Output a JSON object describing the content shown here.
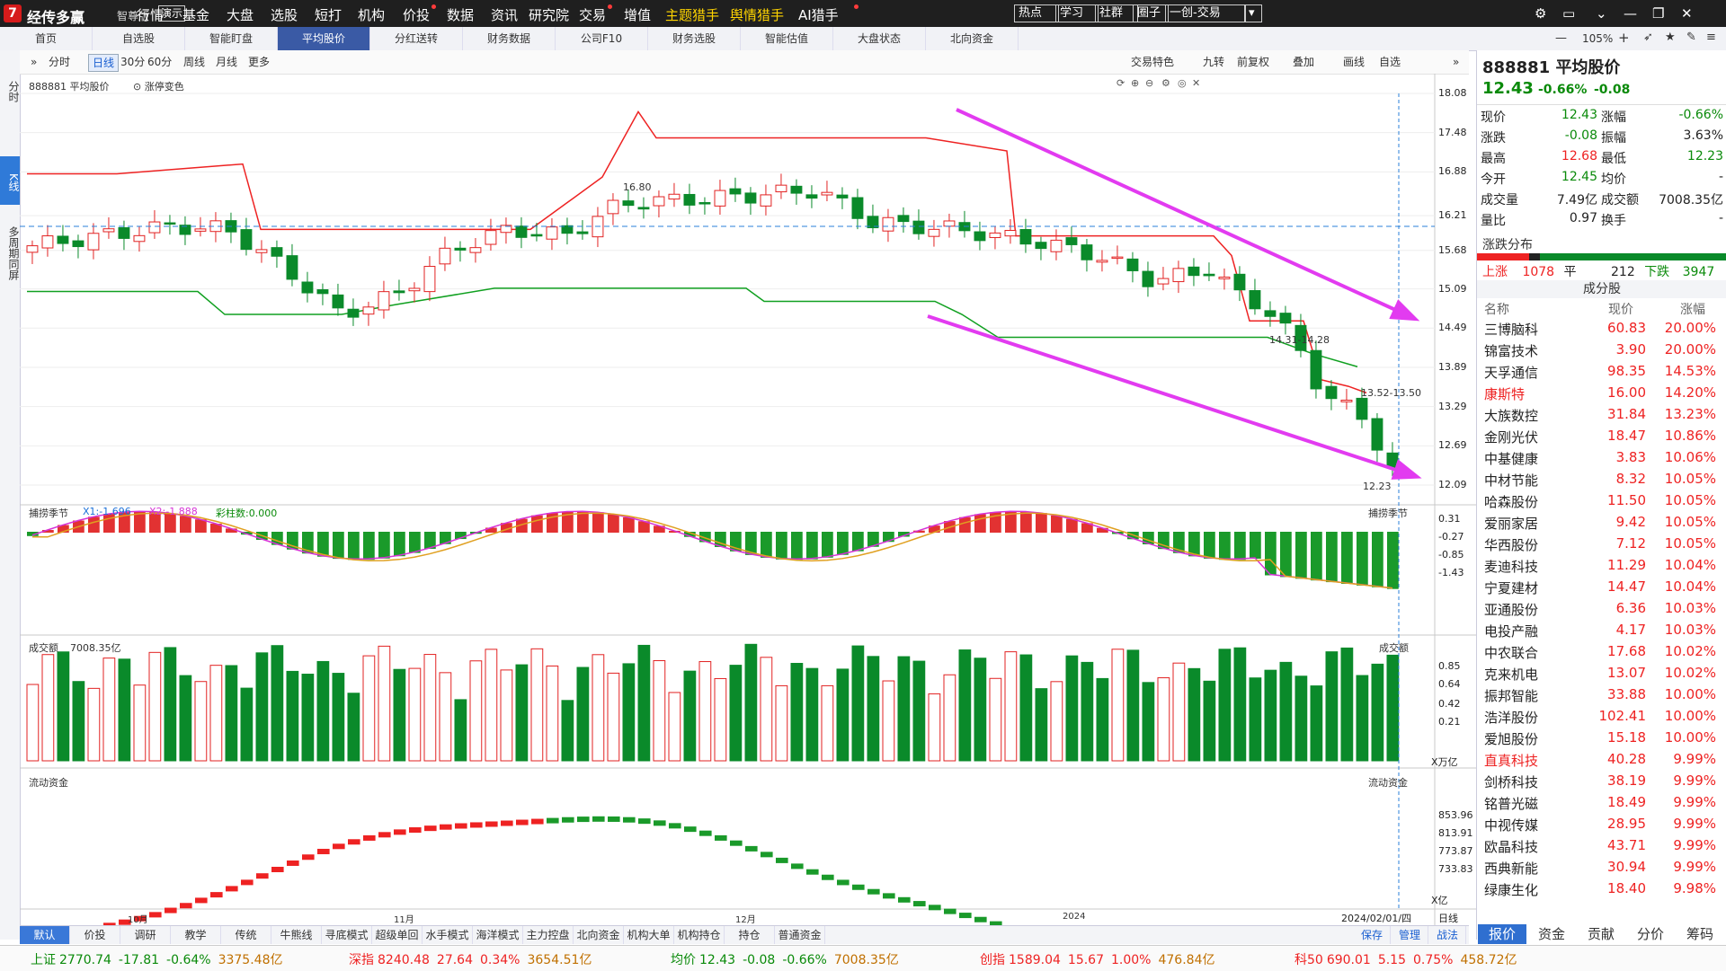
{
  "app": {
    "logo": "7",
    "name": "经传多赢",
    "edition": "智尊版",
    "demo": "演示"
  },
  "menu": [
    {
      "label": "行情",
      "hl": false,
      "dot": false
    },
    {
      "label": "基金",
      "hl": false,
      "dot": false
    },
    {
      "label": "大盘",
      "hl": false,
      "dot": false
    },
    {
      "label": "选股",
      "hl": false,
      "dot": false
    },
    {
      "label": "短打",
      "hl": false,
      "dot": false
    },
    {
      "label": "机构",
      "hl": false,
      "dot": false
    },
    {
      "label": "价投",
      "hl": false,
      "dot": true
    },
    {
      "label": "数据",
      "hl": false,
      "dot": false
    },
    {
      "label": "资讯",
      "hl": false,
      "dot": false
    },
    {
      "label": "研究院",
      "hl": false,
      "dot": false
    },
    {
      "label": "交易",
      "hl": false,
      "dot": true
    },
    {
      "label": "增值",
      "hl": false,
      "dot": false
    },
    {
      "label": "主题猎手",
      "hl": true,
      "dot": false
    },
    {
      "label": "舆情猎手",
      "hl": true,
      "dot": false
    },
    {
      "label": "AI猎手",
      "hl": false,
      "dot": true
    }
  ],
  "topbuttons": [
    "热点",
    "学习",
    "社群",
    "圈子",
    "一创-交易"
  ],
  "tabs": [
    "首页",
    "自选股",
    "智能盯盘",
    "平均股价",
    "分红送转",
    "财务数据",
    "公司F10",
    "财务选股",
    "智能估值",
    "大盘状态",
    "北向资金"
  ],
  "zoom": "105%",
  "vtabs": [
    {
      "label": "分时",
      "active": false
    },
    {
      "label": "K线",
      "active": true
    },
    {
      "label": "多周期同屏",
      "active": false
    }
  ],
  "toolbar": {
    "periods": [
      "分时",
      "日线",
      "30分",
      "60分",
      "周线",
      "月线",
      "更多"
    ],
    "active_period": "日线",
    "right": [
      "交易特色",
      "九转",
      "前复权",
      "叠加",
      "画线",
      "自选"
    ]
  },
  "kline": {
    "title": "888881 平均股价",
    "toggle": "涨停变色",
    "yaxis": [
      "18.08",
      "17.48",
      "16.88",
      "16.21",
      "15.68",
      "15.09",
      "14.49",
      "13.89",
      "13.29",
      "12.69",
      "12.09"
    ],
    "annot_high": "16.80",
    "annot_band1": "14.31-14.28",
    "annot_band2": "13.52-13.50",
    "annot_low": "12.23"
  },
  "macd": {
    "title": "捕捞季节",
    "x1": "X1:-1.696",
    "x2": "X2:-1.888",
    "bars": "彩柱数:0.000",
    "right_title": "捕捞季节",
    "yaxis": [
      "0.31",
      "-0.27",
      "-0.85",
      "-1.43"
    ]
  },
  "volume": {
    "title": "成交额",
    "value": "7008.35亿",
    "right_title": "成交额",
    "yaxis": [
      "0.85",
      "0.64",
      "0.42",
      "0.21"
    ],
    "unit": "X万亿"
  },
  "flow": {
    "title": "流动资金",
    "right_title": "流动资金",
    "yaxis": [
      "853.96",
      "813.91",
      "773.87",
      "733.83"
    ],
    "unit": "X亿"
  },
  "xaxis": [
    "10月",
    "11月",
    "12月",
    "2024"
  ],
  "cursor_date": "2024/02/01/四",
  "period_label": "日线",
  "btabs": [
    "默认",
    "价投",
    "调研",
    "教学",
    "传统",
    "牛熊线",
    "寻底模式",
    "超级单回档",
    "水手模式",
    "海洋模式",
    "主力控盘",
    "北向资金",
    "机构大单",
    "机构持仓",
    "持仓",
    "普通资金"
  ],
  "btabs_right": [
    "保存",
    "管理",
    "战法"
  ],
  "quote": {
    "code": "888881",
    "name": "平均股价",
    "price": "12.43",
    "pct": "-0.66%",
    "chg": "-0.08",
    "rows": [
      [
        "现价",
        "12.43",
        "涨幅",
        "-0.66%"
      ],
      [
        "涨跌",
        "-0.08",
        "振幅",
        "3.63%"
      ],
      [
        "最高",
        "12.68",
        "最低",
        "12.23"
      ],
      [
        "今开",
        "12.45",
        "均价",
        "-"
      ],
      [
        "成交量",
        "7.49亿",
        "成交额",
        "7008.35亿"
      ],
      [
        "量比",
        "0.97",
        "换手",
        "-"
      ]
    ],
    "dist_title": "涨跌分布",
    "up_label": "上涨",
    "up": "1078",
    "flat_label": "平",
    "flat": "212",
    "down_label": "下跌",
    "down": "3947",
    "components_title": "成分股",
    "hdr": [
      "名称",
      "现价",
      "涨幅"
    ]
  },
  "stocks": [
    [
      "三博脑科",
      "60.83",
      "20.00%",
      false
    ],
    [
      "锦富技术",
      "3.90",
      "20.00%",
      false
    ],
    [
      "天孚通信",
      "98.35",
      "14.53%",
      false
    ],
    [
      "康斯特",
      "16.00",
      "14.20%",
      true
    ],
    [
      "大族数控",
      "31.84",
      "13.23%",
      false
    ],
    [
      "金刚光伏",
      "18.47",
      "10.86%",
      false
    ],
    [
      "中基健康",
      "3.83",
      "10.06%",
      false
    ],
    [
      "中材节能",
      "8.32",
      "10.05%",
      false
    ],
    [
      "哈森股份",
      "11.50",
      "10.05%",
      false
    ],
    [
      "爱丽家居",
      "9.42",
      "10.05%",
      false
    ],
    [
      "华西股份",
      "7.12",
      "10.05%",
      false
    ],
    [
      "麦迪科技",
      "11.29",
      "10.04%",
      false
    ],
    [
      "宁夏建材",
      "14.47",
      "10.04%",
      false
    ],
    [
      "亚通股份",
      "6.36",
      "10.03%",
      false
    ],
    [
      "电投产融",
      "4.17",
      "10.03%",
      false
    ],
    [
      "中农联合",
      "17.68",
      "10.02%",
      false
    ],
    [
      "克来机电",
      "13.07",
      "10.02%",
      false
    ],
    [
      "振邦智能",
      "33.88",
      "10.00%",
      false
    ],
    [
      "浩洋股份",
      "102.41",
      "10.00%",
      false
    ],
    [
      "爱旭股份",
      "15.18",
      "10.00%",
      false
    ],
    [
      "直真科技",
      "40.28",
      "9.99%",
      true
    ],
    [
      "剑桥科技",
      "38.19",
      "9.99%",
      false
    ],
    [
      "铭普光磁",
      "18.49",
      "9.99%",
      false
    ],
    [
      "中视传媒",
      "28.95",
      "9.99%",
      false
    ],
    [
      "欧晶科技",
      "43.71",
      "9.99%",
      false
    ],
    [
      "西典新能",
      "30.94",
      "9.99%",
      false
    ],
    [
      "绿康生化",
      "18.40",
      "9.98%",
      false
    ]
  ],
  "rbtabs": [
    "报价",
    "资金",
    "贡献",
    "分价",
    "筹码"
  ],
  "status": [
    {
      "name": "上证",
      "v": "2770.74",
      "c": "-17.81",
      "p": "-0.64%",
      "a": "3375.48亿",
      "up": false
    },
    {
      "name": "深指",
      "v": "8240.48",
      "c": "27.64",
      "p": "0.34%",
      "a": "3654.51亿",
      "up": true
    },
    {
      "name": "均价",
      "v": "12.43",
      "c": "-0.08",
      "p": "-0.66%",
      "a": "7008.35亿",
      "up": false
    },
    {
      "name": "创指",
      "v": "1589.04",
      "c": "15.67",
      "p": "1.00%",
      "a": "476.84亿",
      "up": true
    },
    {
      "name": "科50",
      "v": "690.01",
      "c": "5.15",
      "p": "0.75%",
      "a": "458.72亿",
      "up": true
    }
  ],
  "colors": {
    "up": "#e22222",
    "down": "#0a8a2a",
    "accent": "#3a5aa5",
    "arrow": "#e23bf0",
    "upper_band": "#ee2222",
    "lower_band": "#10a020"
  }
}
